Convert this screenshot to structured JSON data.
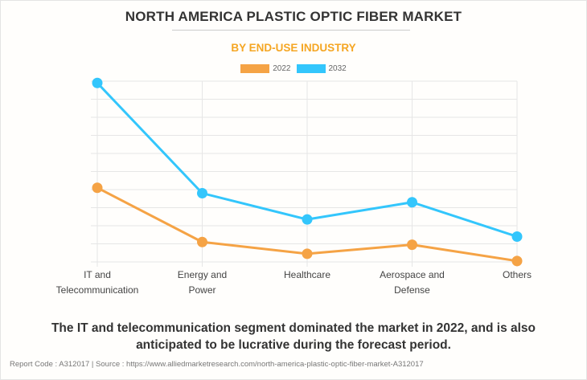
{
  "chart_data": {
    "type": "line",
    "title": "NORTH AMERICA PLASTIC OPTIC FIBER MARKET",
    "subtitle": "BY END-USE INDUSTRY",
    "categories": [
      [
        "IT and",
        "Telecommunication"
      ],
      [
        "Energy and",
        "Power"
      ],
      [
        "Healthcare"
      ],
      [
        "Aerospace and",
        "Defense"
      ],
      [
        "Others"
      ]
    ],
    "category_names": [
      "IT and Telecommunication",
      "Energy and Power",
      "Healthcare",
      "Aerospace and Defense",
      "Others"
    ],
    "series": [
      {
        "name": "2022",
        "color": "#f5a345",
        "values": [
          4.1,
          1.1,
          0.45,
          0.95,
          0.05
        ]
      },
      {
        "name": "2032",
        "color": "#33c6fc",
        "values": [
          9.9,
          3.8,
          2.35,
          3.3,
          1.4
        ]
      }
    ],
    "value_units": "relative (gridline intervals; y-axis unlabeled)",
    "ylim": [
      0,
      10
    ],
    "y_gridlines": 10,
    "grid": true,
    "legend": "top-center",
    "xlabel": "",
    "ylabel": ""
  },
  "legend": [
    {
      "label": "2022",
      "color": "#f5a345"
    },
    {
      "label": "2032",
      "color": "#33c6fc"
    }
  ],
  "footnote": {
    "line1": "The IT and telecommunication segment dominated the market in 2022, and is also",
    "line2": "anticipated to be lucrative during the forecast period."
  },
  "source": "Report Code : A312017  |  Source : https://www.alliedmarketresearch.com/north-america-plastic-optic-fiber-market-A312017"
}
